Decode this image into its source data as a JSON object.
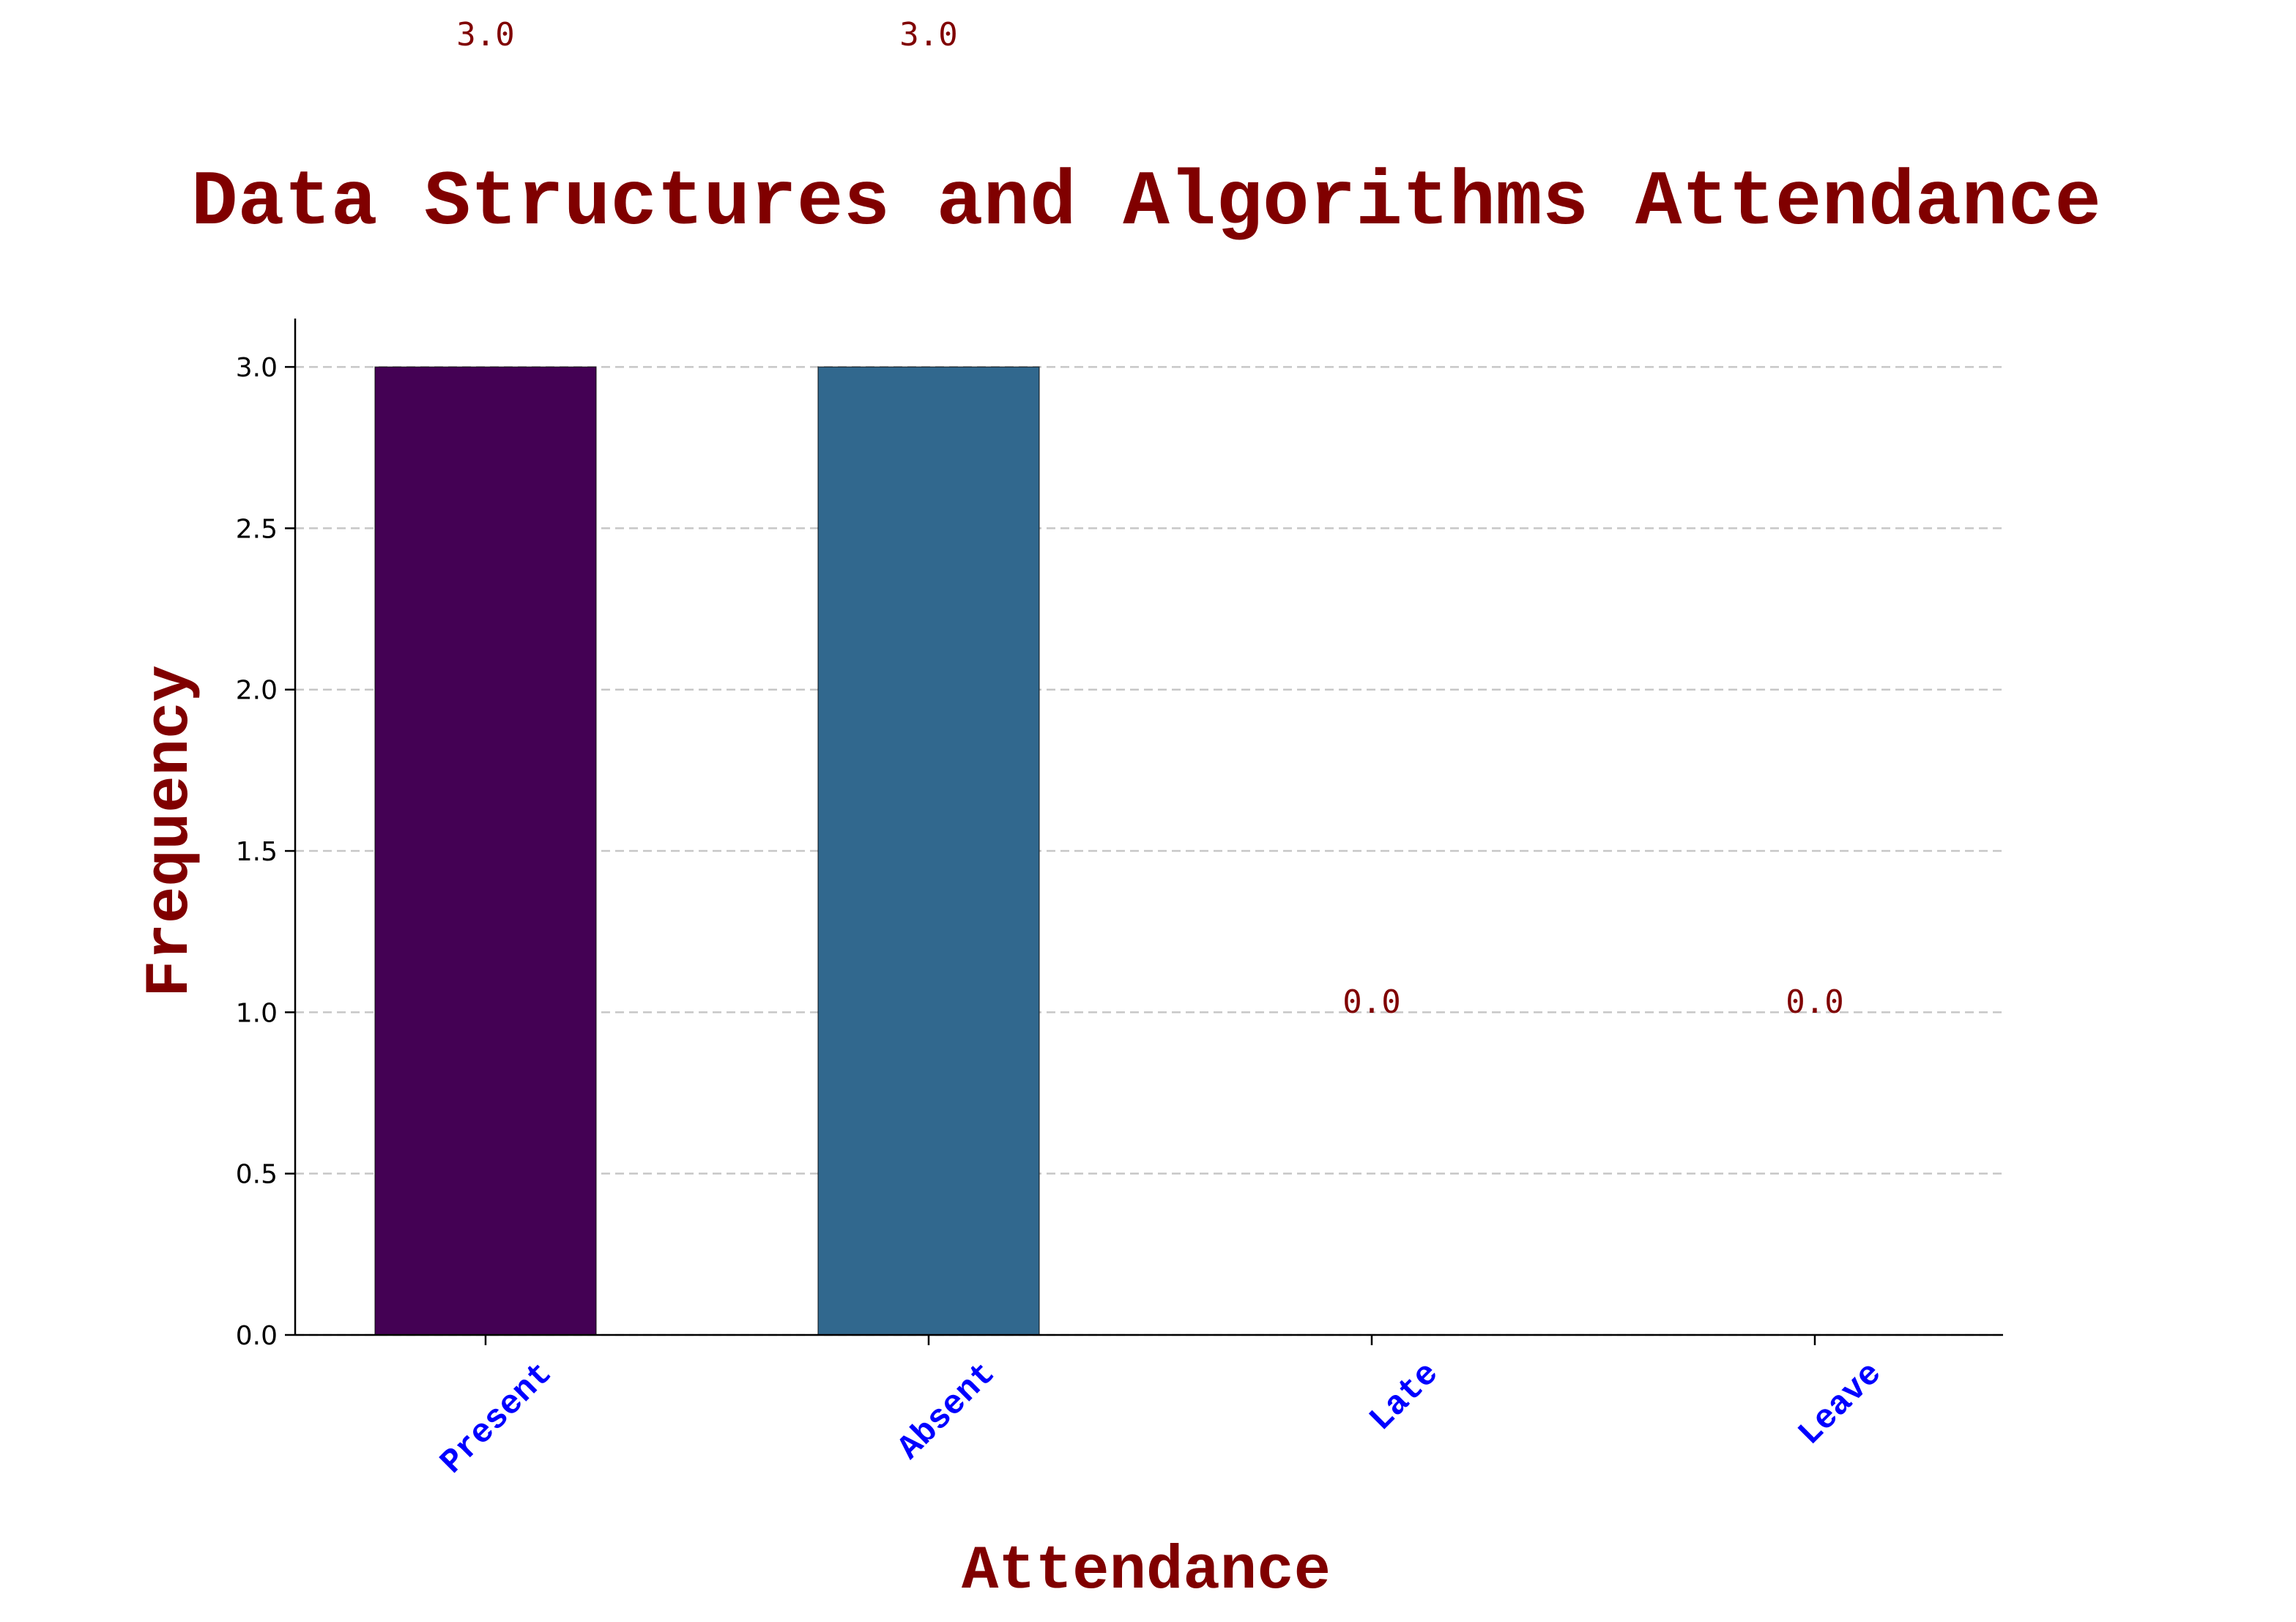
{
  "chart_data": {
    "type": "bar",
    "title": "Data Structures and Algorithms Attendance",
    "xlabel": "Attendance",
    "ylabel": "Frequency",
    "categories": [
      "Present",
      "Absent",
      "Late",
      "Leave"
    ],
    "values": [
      3.0,
      3.0,
      0.0,
      0.0
    ],
    "data_labels": [
      "3.0",
      "3.0",
      "0.0",
      "0.0"
    ],
    "bar_colors": [
      "#440154",
      "#31688e",
      "#35b779",
      "#fde725"
    ],
    "ylim": [
      0,
      3.15
    ],
    "yticks": [
      0.0,
      0.5,
      1.0,
      1.5,
      2.0,
      2.5,
      3.0
    ],
    "ytick_labels": [
      "0.0",
      "0.5",
      "1.0",
      "1.5",
      "2.0",
      "2.5",
      "3.0"
    ],
    "grid": "y-dashed",
    "colors": {
      "title": "#800000",
      "axis_label": "#800000",
      "xtick": "#0000ff",
      "data_label": "#800000",
      "grid": "#b0b0b0"
    }
  }
}
